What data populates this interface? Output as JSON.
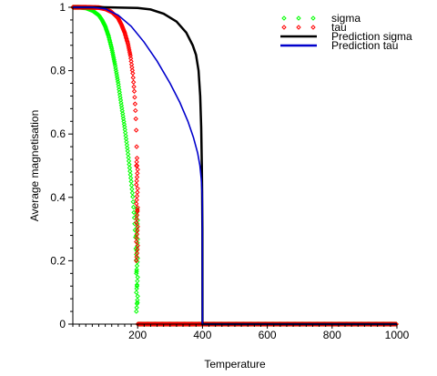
{
  "chart_data": {
    "type": "scatter",
    "title": "",
    "xlabel": "Temperature",
    "ylabel": "Average magnetisation",
    "xlim": [
      0,
      1000
    ],
    "ylim": [
      0,
      1
    ],
    "x_ticks": [
      200,
      400,
      600,
      800,
      1000
    ],
    "x_tick_labels": [
      "200",
      "400",
      "600",
      "800",
      "1000"
    ],
    "y_ticks": [
      0,
      0.2,
      0.4,
      0.6,
      0.8,
      1
    ],
    "y_tick_labels": [
      "0",
      "0.2",
      "0.4",
      "0.6",
      "0.8",
      "1"
    ],
    "grid": false,
    "legend_position": "top-right",
    "series": [
      {
        "name": "sigma",
        "kind": "points",
        "color": "#00ff00",
        "points": [
          [
            0,
            1.0
          ],
          [
            20,
            1.0
          ],
          [
            40,
            0.998
          ],
          [
            60,
            0.99
          ],
          [
            80,
            0.975
          ],
          [
            90,
            0.96
          ],
          [
            100,
            0.94
          ],
          [
            110,
            0.91
          ],
          [
            120,
            0.87
          ],
          [
            130,
            0.82
          ],
          [
            140,
            0.76
          ],
          [
            150,
            0.69
          ],
          [
            160,
            0.62
          ],
          [
            170,
            0.54
          ],
          [
            180,
            0.45
          ],
          [
            185,
            0.4
          ],
          [
            190,
            0.33
          ],
          [
            193,
            0.28
          ],
          [
            195,
            0.22
          ],
          [
            197,
            0.16
          ],
          [
            198,
            0.12
          ],
          [
            199,
            0.08
          ],
          [
            199.5,
            0.05
          ],
          [
            200,
            0.0
          ],
          [
            300,
            0.0
          ],
          [
            400,
            0.0
          ],
          [
            500,
            0.0
          ],
          [
            600,
            0.0
          ],
          [
            700,
            0.0
          ],
          [
            800,
            0.0
          ],
          [
            900,
            0.0
          ],
          [
            1000,
            0.0
          ]
        ]
      },
      {
        "name": "tau",
        "kind": "points",
        "color": "#ff0000",
        "points": [
          [
            0,
            1.0
          ],
          [
            40,
            1.0
          ],
          [
            80,
            0.999
          ],
          [
            100,
            0.995
          ],
          [
            120,
            0.985
          ],
          [
            140,
            0.965
          ],
          [
            150,
            0.945
          ],
          [
            160,
            0.92
          ],
          [
            170,
            0.885
          ],
          [
            178,
            0.845
          ],
          [
            185,
            0.79
          ],
          [
            190,
            0.73
          ],
          [
            194,
            0.66
          ],
          [
            196,
            0.6
          ],
          [
            198,
            0.5
          ],
          [
            199,
            0.4
          ],
          [
            199.5,
            0.3
          ],
          [
            200,
            0.0
          ],
          [
            1000,
            0.0
          ]
        ]
      },
      {
        "name": "Prediction sigma",
        "kind": "line",
        "color": "#000000",
        "points": [
          [
            0,
            1.0
          ],
          [
            100,
            1.0
          ],
          [
            200,
            0.998
          ],
          [
            240,
            0.993
          ],
          [
            280,
            0.98
          ],
          [
            320,
            0.955
          ],
          [
            350,
            0.92
          ],
          [
            370,
            0.88
          ],
          [
            380,
            0.85
          ],
          [
            388,
            0.8
          ],
          [
            393,
            0.72
          ],
          [
            396,
            0.62
          ],
          [
            398,
            0.5
          ],
          [
            399,
            0.42
          ],
          [
            399.6,
            0.3
          ],
          [
            400,
            0.0
          ],
          [
            1000,
            0.0
          ]
        ]
      },
      {
        "name": "Prediction tau",
        "kind": "line",
        "color": "#0000cc",
        "points": [
          [
            0,
            1.0
          ],
          [
            60,
            1.0
          ],
          [
            100,
            0.995
          ],
          [
            140,
            0.975
          ],
          [
            180,
            0.94
          ],
          [
            220,
            0.89
          ],
          [
            260,
            0.83
          ],
          [
            300,
            0.76
          ],
          [
            330,
            0.7
          ],
          [
            355,
            0.64
          ],
          [
            372,
            0.59
          ],
          [
            385,
            0.54
          ],
          [
            392,
            0.5
          ],
          [
            396,
            0.46
          ],
          [
            398,
            0.43
          ],
          [
            399.5,
            0.4
          ],
          [
            400,
            0.0
          ],
          [
            1000,
            0.0
          ]
        ]
      }
    ]
  }
}
